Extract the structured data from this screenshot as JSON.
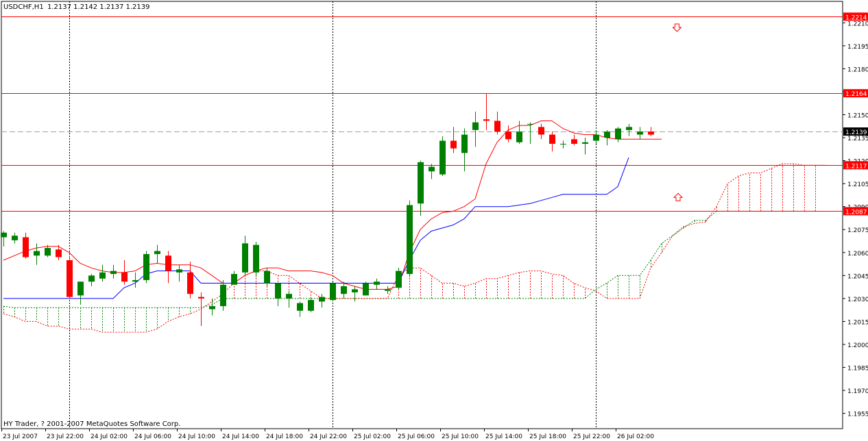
{
  "header": {
    "symbol_timeframe": "USDCHF,H1",
    "ohlc_text": "1.2137 1.2142 1.2137 1.2139"
  },
  "copyright": "HY Trader, ? 2001-2007 MetaQuotes Software Corp.",
  "colors": {
    "background": "#ffffff",
    "axis": "#000000",
    "bull_candle": "#008000",
    "bear_candle": "#ff0000",
    "tenkan": "#ff0000",
    "kijun": "#0000ff",
    "span_a": "#008000",
    "span_b": "#ff0000",
    "level_line": "#ff0000",
    "price_line": "#a0a0a0",
    "grid_separator": "#000000",
    "label_box": "#ff0000",
    "current_box": "#000000"
  },
  "chart_data": {
    "type": "candlestick",
    "ylim": [
      1.1945,
      1.2224
    ],
    "y_ticks": [
      "1.2210",
      "1.2195",
      "1.2180",
      "1.2165",
      "1.2150",
      "1.2135",
      "1.2120",
      "1.2105",
      "1.2090",
      "1.2075",
      "1.2060",
      "1.2045",
      "1.2030",
      "1.2015",
      "1.2000",
      "1.1985",
      "1.1970",
      "1.1955"
    ],
    "x_tick_labels": [
      "23 Jul 2007",
      "23 Jul 22:00",
      "24 Jul 02:00",
      "24 Jul 06:00",
      "24 Jul 10:00",
      "24 Jul 14:00",
      "24 Jul 18:00",
      "24 Jul 22:00",
      "25 Jul 02:00",
      "25 Jul 06:00",
      "25 Jul 10:00",
      "25 Jul 14:00",
      "25 Jul 18:00",
      "25 Jul 22:00",
      "26 Jul 02:00"
    ],
    "separator_bar_indices": [
      6,
      30,
      54
    ],
    "horizontal_levels": [
      {
        "value": 1.2214,
        "label": "1.2214"
      },
      {
        "value": 1.2164,
        "label": "1.2164"
      },
      {
        "value": 1.2117,
        "label": "1.2117"
      },
      {
        "value": 1.2087,
        "label": "1.2087"
      }
    ],
    "current_price": {
      "value": 1.2139,
      "label": "1.2139"
    },
    "arrows": [
      {
        "type": "down",
        "bar_index": 61.4,
        "price": 1.2207
      },
      {
        "type": "up",
        "bar_index": 61.5,
        "price": 1.2096
      }
    ],
    "candles": [
      {
        "o": 1.207,
        "h": 1.2074,
        "l": 1.2064,
        "c": 1.2073
      },
      {
        "o": 1.2068,
        "h": 1.2073,
        "l": 1.2066,
        "c": 1.2071
      },
      {
        "o": 1.207,
        "h": 1.2073,
        "l": 1.2056,
        "c": 1.2057
      },
      {
        "o": 1.2058,
        "h": 1.2066,
        "l": 1.2052,
        "c": 1.2061
      },
      {
        "o": 1.2058,
        "h": 1.2065,
        "l": 1.2057,
        "c": 1.2063
      },
      {
        "o": 1.2062,
        "h": 1.2065,
        "l": 1.2055,
        "c": 1.2057
      },
      {
        "o": 1.2055,
        "h": 1.2058,
        "l": 1.203,
        "c": 1.2031
      },
      {
        "o": 1.2032,
        "h": 1.2041,
        "l": 1.2026,
        "c": 1.2041
      },
      {
        "o": 1.2041,
        "h": 1.2046,
        "l": 1.2038,
        "c": 1.2045
      },
      {
        "o": 1.2043,
        "h": 1.2052,
        "l": 1.2041,
        "c": 1.2047
      },
      {
        "o": 1.2046,
        "h": 1.2052,
        "l": 1.2043,
        "c": 1.2048
      },
      {
        "o": 1.2047,
        "h": 1.2055,
        "l": 1.2039,
        "c": 1.2041
      },
      {
        "o": 1.2041,
        "h": 1.2047,
        "l": 1.2037,
        "c": 1.2042
      },
      {
        "o": 1.2042,
        "h": 1.2061,
        "l": 1.204,
        "c": 1.2059
      },
      {
        "o": 1.2059,
        "h": 1.2065,
        "l": 1.2053,
        "c": 1.2061
      },
      {
        "o": 1.2058,
        "h": 1.2061,
        "l": 1.204,
        "c": 1.2048
      },
      {
        "o": 1.2047,
        "h": 1.2052,
        "l": 1.2041,
        "c": 1.2049
      },
      {
        "o": 1.2047,
        "h": 1.2054,
        "l": 1.203,
        "c": 1.2033
      },
      {
        "o": 1.2031,
        "h": 1.2034,
        "l": 1.2012,
        "c": 1.203
      },
      {
        "o": 1.2023,
        "h": 1.203,
        "l": 1.2019,
        "c": 1.2025
      },
      {
        "o": 1.2025,
        "h": 1.2042,
        "l": 1.2022,
        "c": 1.2039
      },
      {
        "o": 1.2039,
        "h": 1.2048,
        "l": 1.2039,
        "c": 1.2046
      },
      {
        "o": 1.2047,
        "h": 1.2071,
        "l": 1.2045,
        "c": 1.2066
      },
      {
        "o": 1.2047,
        "h": 1.2067,
        "l": 1.2044,
        "c": 1.2065
      },
      {
        "o": 1.204,
        "h": 1.205,
        "l": 1.2038,
        "c": 1.2048
      },
      {
        "o": 1.203,
        "h": 1.204,
        "l": 1.2025,
        "c": 1.204
      },
      {
        "o": 1.203,
        "h": 1.2035,
        "l": 1.2024,
        "c": 1.2033
      },
      {
        "o": 1.2022,
        "h": 1.2028,
        "l": 1.2018,
        "c": 1.2027
      },
      {
        "o": 1.2022,
        "h": 1.2031,
        "l": 1.2021,
        "c": 1.2029
      },
      {
        "o": 1.2028,
        "h": 1.2033,
        "l": 1.2024,
        "c": 1.2031
      },
      {
        "o": 1.2029,
        "h": 1.2041,
        "l": 1.2028,
        "c": 1.204
      },
      {
        "o": 1.2033,
        "h": 1.2041,
        "l": 1.203,
        "c": 1.2038
      },
      {
        "o": 1.2034,
        "h": 1.2038,
        "l": 1.2028,
        "c": 1.2036
      },
      {
        "o": 1.2032,
        "h": 1.2041,
        "l": 1.2032,
        "c": 1.204
      },
      {
        "o": 1.2039,
        "h": 1.2043,
        "l": 1.2036,
        "c": 1.2041
      },
      {
        "o": 1.2035,
        "h": 1.2038,
        "l": 1.2033,
        "c": 1.2036
      },
      {
        "o": 1.2037,
        "h": 1.205,
        "l": 1.2036,
        "c": 1.2048
      },
      {
        "o": 1.2046,
        "h": 1.2094,
        "l": 1.2044,
        "c": 1.2091
      },
      {
        "o": 1.2092,
        "h": 1.212,
        "l": 1.2084,
        "c": 1.2119
      },
      {
        "o": 1.2113,
        "h": 1.2118,
        "l": 1.2108,
        "c": 1.2116
      },
      {
        "o": 1.2111,
        "h": 1.2136,
        "l": 1.211,
        "c": 1.2133
      },
      {
        "o": 1.2133,
        "h": 1.2142,
        "l": 1.2125,
        "c": 1.2128
      },
      {
        "o": 1.2125,
        "h": 1.2141,
        "l": 1.2113,
        "c": 1.2137
      },
      {
        "o": 1.214,
        "h": 1.2152,
        "l": 1.2129,
        "c": 1.2145
      },
      {
        "o": 1.2147,
        "h": 1.2164,
        "l": 1.214,
        "c": 1.2146
      },
      {
        "o": 1.2146,
        "h": 1.2152,
        "l": 1.2137,
        "c": 1.2139
      },
      {
        "o": 1.2139,
        "h": 1.2143,
        "l": 1.2132,
        "c": 1.2134
      },
      {
        "o": 1.2132,
        "h": 1.2146,
        "l": 1.2131,
        "c": 1.2139
      },
      {
        "o": 1.2144,
        "h": 1.2145,
        "l": 1.2131,
        "c": 1.2144
      },
      {
        "o": 1.2142,
        "h": 1.2144,
        "l": 1.2134,
        "c": 1.2137
      },
      {
        "o": 1.2137,
        "h": 1.2139,
        "l": 1.2126,
        "c": 1.2131
      },
      {
        "o": 1.2131,
        "h": 1.2133,
        "l": 1.2128,
        "c": 1.2131
      },
      {
        "o": 1.2134,
        "h": 1.2137,
        "l": 1.213,
        "c": 1.2131
      },
      {
        "o": 1.2131,
        "h": 1.2135,
        "l": 1.2124,
        "c": 1.2132
      },
      {
        "o": 1.2133,
        "h": 1.214,
        "l": 1.2131,
        "c": 1.2137
      },
      {
        "o": 1.2135,
        "h": 1.214,
        "l": 1.213,
        "c": 1.2139
      },
      {
        "o": 1.2134,
        "h": 1.2142,
        "l": 1.2132,
        "c": 1.2141
      },
      {
        "o": 1.214,
        "h": 1.2144,
        "l": 1.2136,
        "c": 1.2142
      },
      {
        "o": 1.2137,
        "h": 1.2142,
        "l": 1.2134,
        "c": 1.2139
      },
      {
        "o": 1.2139,
        "h": 1.2142,
        "l": 1.2136,
        "c": 1.2137
      }
    ],
    "tenkan_sen": [
      1.2055,
      1.2058,
      1.2061,
      1.2063,
      1.2064,
      1.2064,
      1.206,
      1.2053,
      1.205,
      1.2048,
      1.2047,
      1.2047,
      1.2048,
      1.2052,
      1.2053,
      1.2052,
      1.2052,
      1.2052,
      1.205,
      1.2045,
      1.204,
      1.204,
      1.2045,
      1.2048,
      1.205,
      1.205,
      1.2048,
      1.2048,
      1.2048,
      1.2047,
      1.2045,
      1.204,
      1.2038,
      1.2036,
      1.2036,
      1.2036,
      1.2038,
      1.206,
      1.2075,
      1.2082,
      1.2086,
      1.2087,
      1.209,
      1.2095,
      1.2118,
      1.2132,
      1.214,
      1.2143,
      1.2143,
      1.2146,
      1.2146,
      1.2141,
      1.2138,
      1.2137,
      1.2137,
      1.2135,
      1.2134,
      1.2134,
      1.2134,
      1.2134,
      1.2134
    ],
    "kijun_sen": [
      1.203,
      1.203,
      1.203,
      1.203,
      1.203,
      1.203,
      1.203,
      1.203,
      1.203,
      1.203,
      1.203,
      1.2037,
      1.204,
      1.2046,
      1.2048,
      1.2048,
      1.2048,
      1.2048,
      1.204,
      1.204,
      1.204,
      1.204,
      1.204,
      1.204,
      1.204,
      1.204,
      1.204,
      1.204,
      1.204,
      1.204,
      1.204,
      1.204,
      1.204,
      1.204,
      1.204,
      1.204,
      1.204,
      1.2055,
      1.2068,
      1.2074,
      1.2076,
      1.2078,
      1.2082,
      1.209,
      1.209,
      1.209,
      1.209,
      1.2091,
      1.2092,
      1.2094,
      1.2096,
      1.2098,
      1.2098,
      1.2098,
      1.2098,
      1.2098,
      1.2103,
      1.2122
    ],
    "senkou_span_a": [
      1.2025,
      1.2024,
      1.2024,
      1.2024,
      1.2024,
      1.2024,
      1.2024,
      1.2024,
      1.2024,
      1.2024,
      1.2024,
      1.2024,
      1.2024,
      1.2024,
      1.2024,
      1.2024,
      1.2024,
      1.2024,
      1.2024,
      1.2026,
      1.203,
      1.203,
      1.203,
      1.203,
      1.203,
      1.203,
      1.203,
      1.203,
      1.203,
      1.203,
      1.203,
      1.203,
      1.203,
      1.203,
      1.203,
      1.203,
      1.203,
      1.203,
      1.203,
      1.203,
      1.203,
      1.203,
      1.203,
      1.203,
      1.203,
      1.203,
      1.203,
      1.203,
      1.203,
      1.203,
      1.203,
      1.203,
      1.203,
      1.203,
      1.2036,
      1.204,
      1.2045,
      1.2045,
      1.2045,
      1.2055,
      1.2066,
      1.2071,
      1.2076,
      1.2081,
      1.2081,
      1.2087,
      1.2087,
      1.2087,
      1.2087,
      1.2087,
      1.2087,
      1.2087,
      1.2087,
      1.2087,
      1.2087
    ],
    "senkou_span_b": [
      1.202,
      1.2018,
      1.2015,
      1.2015,
      1.2012,
      1.2012,
      1.201,
      1.201,
      1.201,
      1.2008,
      1.2008,
      1.2008,
      1.2008,
      1.2008,
      1.201,
      1.2015,
      1.2018,
      1.202,
      1.2023,
      1.2028,
      1.2033,
      1.204,
      1.2045,
      1.2048,
      1.2048,
      1.2045,
      1.2045,
      1.204,
      1.2035,
      1.203,
      1.203,
      1.203,
      1.203,
      1.203,
      1.203,
      1.203,
      1.2045,
      1.205,
      1.205,
      1.2045,
      1.204,
      1.204,
      1.2038,
      1.204,
      1.2043,
      1.2043,
      1.2045,
      1.2047,
      1.2048,
      1.2048,
      1.2046,
      1.2045,
      1.204,
      1.2037,
      1.2035,
      1.203,
      1.203,
      1.203,
      1.203,
      1.205,
      1.206,
      1.2071,
      1.2077,
      1.2079,
      1.208,
      1.209,
      1.2105,
      1.211,
      1.2112,
      1.2112,
      1.2115,
      1.2118,
      1.2118,
      1.2117,
      1.2117,
      1.2117
    ]
  }
}
